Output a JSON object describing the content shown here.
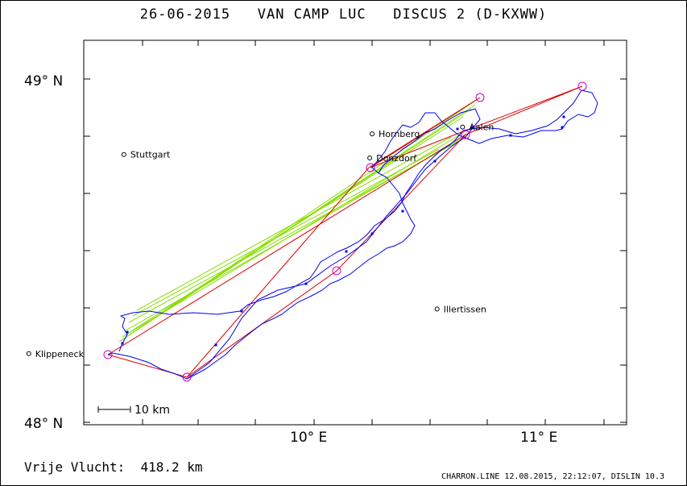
{
  "header": {
    "title": "26-06-2015   VAN CAMP LUC   DISCUS 2 (D-KXWW)"
  },
  "map": {
    "lat_labels": [
      "49° N",
      "48° N"
    ],
    "lon_labels": [
      "10° E",
      "11° E"
    ],
    "scale_label": "10 km",
    "places": [
      {
        "name": "Stuttgart",
        "lon": 9.18,
        "lat": 48.78
      },
      {
        "name": "Hornberg",
        "lon": 10.25,
        "lat": 48.84
      },
      {
        "name": "Donzdorf",
        "lon": 10.24,
        "lat": 48.77
      },
      {
        "name": "Aalen",
        "lon": 10.64,
        "lat": 48.86
      },
      {
        "name": "Illertissen",
        "lon": 10.53,
        "lat": 48.33
      },
      {
        "name": "Klippeneck",
        "lon": 8.77,
        "lat": 48.2
      }
    ],
    "colors": {
      "frame": "#000000",
      "track": "#0000ee",
      "task": "#dd0000",
      "thermal_legs": "#88dd00",
      "turnpoint": "#cc00cc"
    }
  },
  "footer": {
    "distance": "Vrije Vlucht:  418.2 km",
    "credits": "CHARRON.LINE 12.08.2015, 22:12:07, DISLIN 10.3"
  }
}
